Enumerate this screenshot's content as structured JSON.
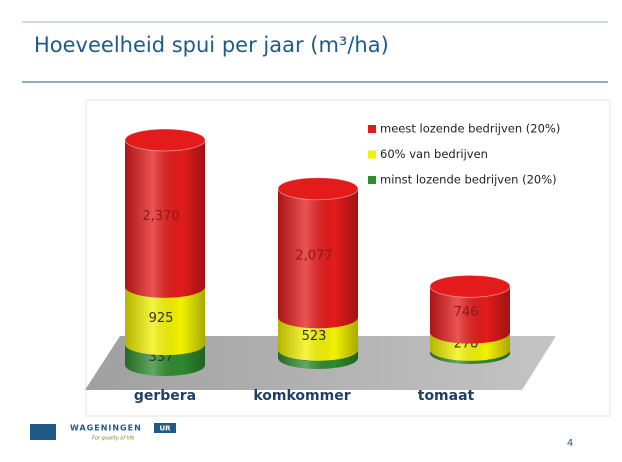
{
  "slide": {
    "title": "Hoeveelheid spui per jaar (m³/ha)",
    "page_number": "4",
    "logo": {
      "name": "WAGENINGEN",
      "suffix": "UR",
      "tagline": "For quality of life"
    }
  },
  "chart_data": {
    "type": "bar",
    "stacked": true,
    "categories": [
      "gerbera",
      "komkommer",
      "tomaat"
    ],
    "series": [
      {
        "name": "minst lozende bedrijven (20%)",
        "color": "#2e8b2e",
        "values": [
          337,
          133,
          52
        ]
      },
      {
        "name": "60% van bedrijven",
        "color": "#f2f200",
        "values": [
          925,
          523,
          278
        ]
      },
      {
        "name": "meest lozende bedrijven (20%)",
        "color": "#e31b1b",
        "values": [
          2370,
          2077,
          746
        ],
        "value_labels": [
          "2,370",
          "2,077",
          "746"
        ]
      }
    ],
    "legend": "top-right"
  }
}
